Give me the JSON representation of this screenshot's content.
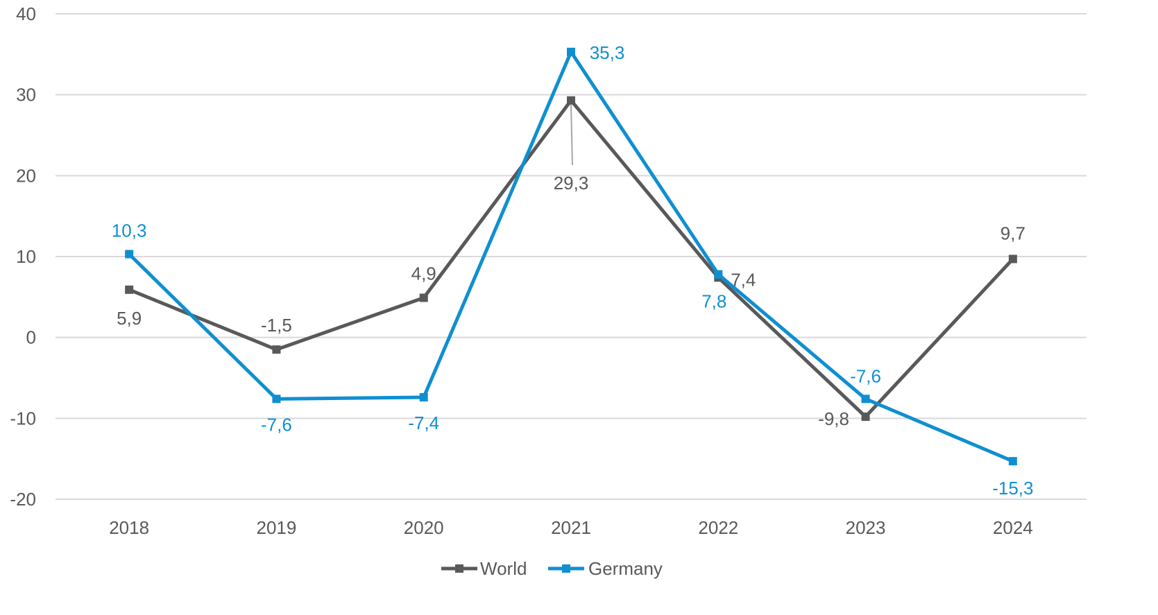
{
  "chart_data": {
    "type": "line",
    "categories": [
      "2018",
      "2019",
      "2020",
      "2021",
      "2022",
      "2023",
      "2024"
    ],
    "series": [
      {
        "name": "World",
        "color": "#595959",
        "values": [
          5.9,
          -1.5,
          4.9,
          29.3,
          7.4,
          -9.8,
          9.7
        ],
        "labels": [
          "5,9",
          "-1,5",
          "4,9",
          "29,3",
          "7,4",
          "-9,8",
          "9,7"
        ],
        "marker": "square"
      },
      {
        "name": "Germany",
        "color": "#0f8fd1",
        "values": [
          10.3,
          -7.6,
          -7.4,
          35.3,
          7.8,
          -7.6,
          -15.3
        ],
        "labels": [
          "10,3",
          "-7,6",
          "-7,4",
          "35,3",
          "7,8",
          "-7,6",
          "-15,3"
        ],
        "marker": "square"
      }
    ],
    "y_ticks": [
      "40",
      "30",
      "20",
      "10",
      "0",
      "-10",
      "-20"
    ],
    "ylim": [
      -20,
      40
    ],
    "grid": true,
    "legend_position": "bottom"
  }
}
